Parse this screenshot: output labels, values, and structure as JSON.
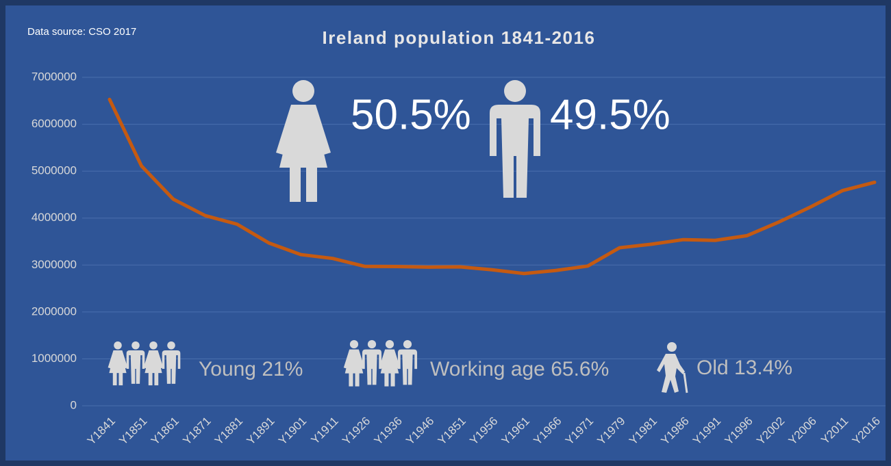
{
  "chart_data": {
    "type": "line",
    "title": "Ireland population 1841-2016",
    "source": "Data source: CSO 2017",
    "annotations": {
      "female": "50.5%",
      "male": "49.5%",
      "young": "Young 21%",
      "working": "Working age 65.6%",
      "old": "Old 13.4%"
    },
    "categories": [
      "Y1841",
      "Y1851",
      "Y1861",
      "Y1871",
      "Y1881",
      "Y1891",
      "Y1901",
      "Y1911",
      "Y1926",
      "Y1936",
      "Y1946",
      "Y1851",
      "Y1956",
      "Y1961",
      "Y1966",
      "Y1971",
      "Y1979",
      "Y1981",
      "Y1986",
      "Y1991",
      "Y1996",
      "Y2002",
      "Y2006",
      "Y2011",
      "Y2016"
    ],
    "values": [
      6529000,
      5112000,
      4402000,
      4053000,
      3870000,
      3469000,
      3222000,
      3140000,
      2972000,
      2968000,
      2955000,
      2961000,
      2898000,
      2818000,
      2884000,
      2978000,
      3368000,
      3443000,
      3541000,
      3526000,
      3626000,
      3917000,
      4240000,
      4588000,
      4762000
    ],
    "color": "#c55a11",
    "ylim": [
      0,
      7000000
    ],
    "yticks": [
      0,
      1000000,
      2000000,
      3000000,
      4000000,
      5000000,
      6000000,
      7000000
    ],
    "grid": true
  }
}
